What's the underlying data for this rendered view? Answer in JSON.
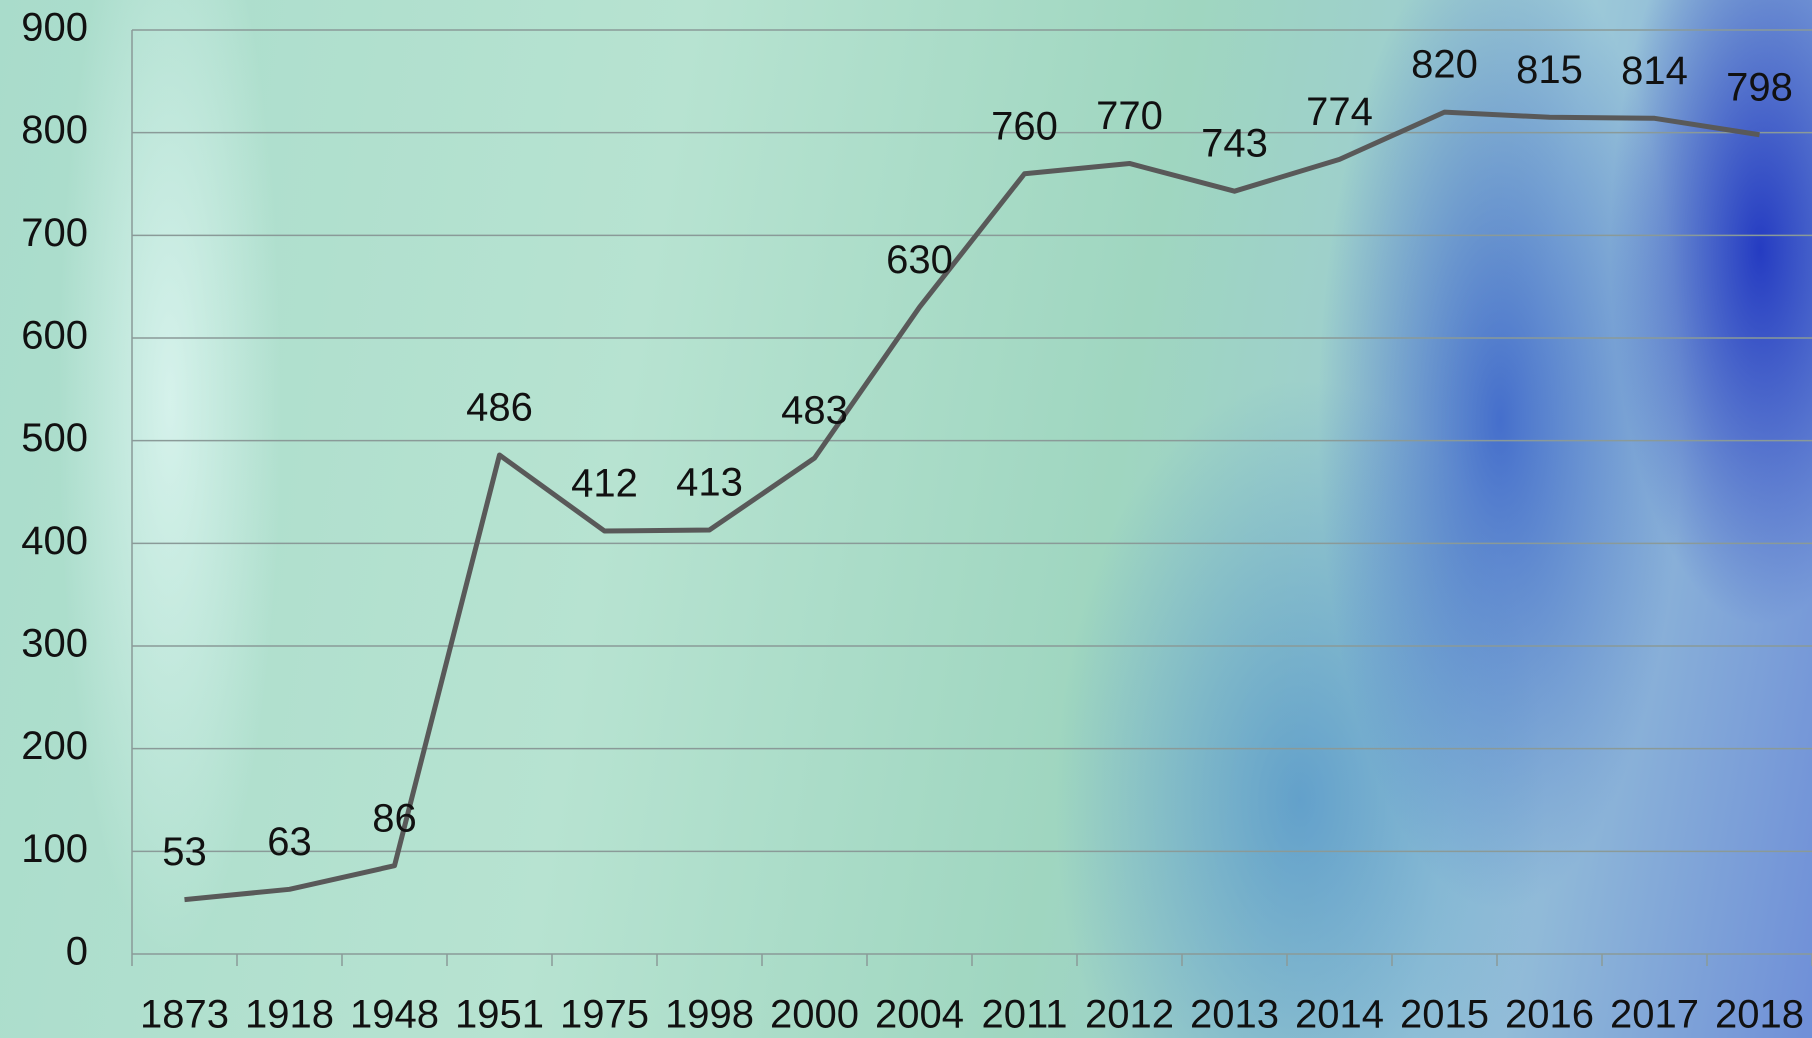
{
  "chart_data": {
    "type": "line",
    "categories": [
      "1873",
      "1918",
      "1948",
      "1951",
      "1975",
      "1998",
      "2000",
      "2004",
      "2011",
      "2012",
      "2013",
      "2014",
      "2015",
      "2016",
      "2017",
      "2018"
    ],
    "values": [
      53,
      63,
      86,
      486,
      412,
      413,
      483,
      630,
      760,
      770,
      743,
      774,
      820,
      815,
      814,
      798
    ],
    "color": "#595959",
    "ylim": [
      0,
      900
    ],
    "yticks": [
      0,
      100,
      200,
      300,
      400,
      500,
      600,
      700,
      800,
      900
    ],
    "grid": true
  }
}
